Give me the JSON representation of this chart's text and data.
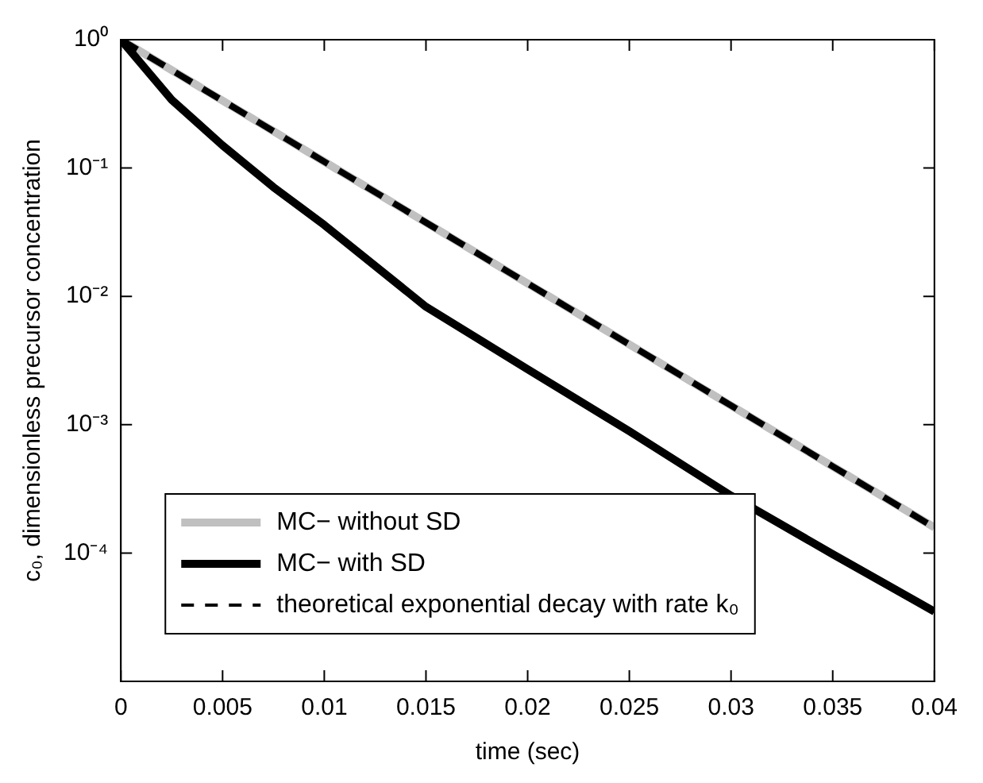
{
  "chart_data": {
    "type": "line",
    "xlabel": "time (sec)",
    "ylabel": "c₀, dimensionless precursor concentration",
    "x": [
      0,
      0.0025,
      0.005,
      0.0075,
      0.01,
      0.015,
      0.02,
      0.025,
      0.03,
      0.035,
      0.04
    ],
    "series": [
      {
        "name": "MC− without SD",
        "color": "#c0c0c0",
        "x": [
          0,
          0.005,
          0.01,
          0.015,
          0.02,
          0.025,
          0.03,
          0.035,
          0.04
        ],
        "values": [
          1,
          0.335,
          0.112,
          0.0376,
          0.0126,
          0.00422,
          0.00141,
          0.000473,
          0.000158
        ]
      },
      {
        "name": "MC− with SD",
        "color": "#000000",
        "values": [
          1,
          0.34,
          0.15,
          0.071,
          0.036,
          0.0083,
          0.0027,
          0.00089,
          0.00028,
          9.8e-05,
          3.5e-05
        ]
      },
      {
        "name": "theoretical exponential decay with rate k₀",
        "color": "#000000",
        "line_style": "dashed",
        "x": [
          0,
          0.005,
          0.01,
          0.015,
          0.02,
          0.025,
          0.03,
          0.035,
          0.04
        ],
        "values": [
          1,
          0.335,
          0.112,
          0.0376,
          0.0126,
          0.00422,
          0.00141,
          0.000473,
          0.000158
        ]
      }
    ],
    "log": "y",
    "xlim": [
      0,
      0.04
    ],
    "ylim": [
      1e-05,
      1
    ],
    "xticks": [
      0,
      0.005,
      0.01,
      0.015,
      0.02,
      0.025,
      0.03,
      0.035,
      0.04
    ],
    "yticks": [
      {
        "value": 1,
        "label": "10⁰"
      },
      {
        "value": 0.1,
        "label": "10⁻¹"
      },
      {
        "value": 0.01,
        "label": "10⁻²"
      },
      {
        "value": 0.001,
        "label": "10⁻³"
      },
      {
        "value": 0.0001,
        "label": "10⁻⁴"
      }
    ],
    "grid": false,
    "legend": "bottom left",
    "marker": "none"
  }
}
